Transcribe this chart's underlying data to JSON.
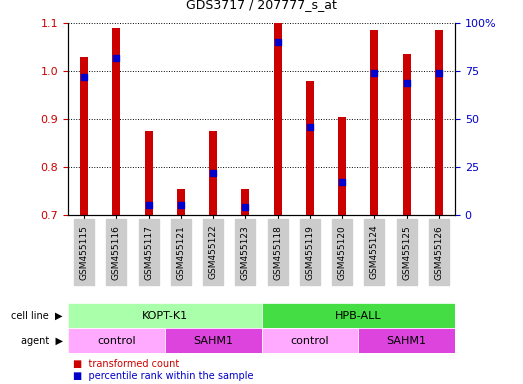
{
  "title": "GDS3717 / 207777_s_at",
  "samples": [
    "GSM455115",
    "GSM455116",
    "GSM455117",
    "GSM455121",
    "GSM455122",
    "GSM455123",
    "GSM455118",
    "GSM455119",
    "GSM455120",
    "GSM455124",
    "GSM455125",
    "GSM455126"
  ],
  "bar_values": [
    1.03,
    1.09,
    0.875,
    0.755,
    0.875,
    0.755,
    1.1,
    0.98,
    0.905,
    1.085,
    1.035,
    1.085
  ],
  "percentile_values": [
    72,
    82,
    5,
    5,
    22,
    4,
    90,
    46,
    17,
    74,
    69,
    74
  ],
  "bar_color": "#cc0000",
  "percentile_color": "#0000cc",
  "ylim_left": [
    0.7,
    1.1
  ],
  "ylim_right": [
    0,
    100
  ],
  "yticks_left": [
    0.7,
    0.8,
    0.9,
    1.0,
    1.1
  ],
  "yticks_right": [
    0,
    25,
    50,
    75,
    100
  ],
  "yticklabels_right": [
    "0",
    "25",
    "50",
    "75",
    "100%"
  ],
  "cell_line_labels": [
    "KOPT-K1",
    "HPB-ALL"
  ],
  "cell_line_ranges": [
    [
      0,
      6
    ],
    [
      6,
      12
    ]
  ],
  "cell_line_colors": [
    "#aaffaa",
    "#44dd44"
  ],
  "agent_groups": [
    {
      "label": "control",
      "range": [
        0,
        3
      ],
      "color": "#ffaaff"
    },
    {
      "label": "SAHM1",
      "range": [
        3,
        6
      ],
      "color": "#dd44dd"
    },
    {
      "label": "control",
      "range": [
        6,
        9
      ],
      "color": "#ffaaff"
    },
    {
      "label": "SAHM1",
      "range": [
        9,
        12
      ],
      "color": "#dd44dd"
    }
  ],
  "legend_red_label": "transformed count",
  "legend_blue_label": "percentile rank within the sample",
  "bar_color_label": "#cc0000",
  "pct_color_label": "#0000cc",
  "left_tick_color": "#cc0000",
  "right_tick_color": "#0000cc",
  "bar_width": 0.25,
  "tick_label_bg": "#cccccc"
}
